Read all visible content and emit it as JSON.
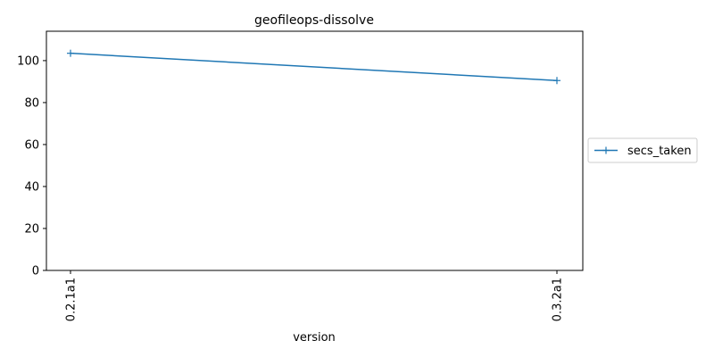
{
  "chart_data": {
    "type": "line",
    "title": "geofileops-dissolve",
    "xlabel": "version",
    "ylabel": "",
    "categories": [
      "0.2.1a1",
      "0.3.2a1"
    ],
    "series": [
      {
        "name": "secs_taken",
        "values": [
          103.5,
          90.5
        ],
        "color": "#1f77b4",
        "marker": "plus"
      }
    ],
    "ylim": [
      0,
      114
    ],
    "yticks": [
      0,
      20,
      40,
      60,
      80,
      100
    ],
    "grid": false,
    "legend": "outside-right"
  }
}
